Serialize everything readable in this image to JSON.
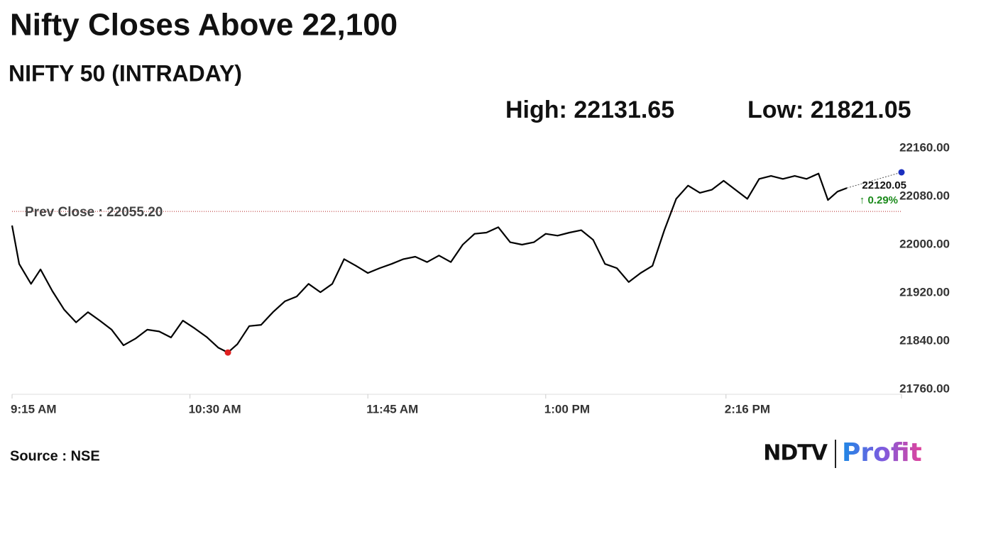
{
  "chart_data": {
    "type": "line",
    "title": "Nifty Closes Above 22,100",
    "subtitle": "NIFTY 50 (INTRADAY)",
    "high_label": "High:",
    "high": 22131.65,
    "low_label": "Low:",
    "low": 21821.05,
    "prev_close": {
      "value": 22055.2,
      "label": "Prev Close : 22055.20"
    },
    "last_value": 22120.05,
    "change_label": "↑ 0.29%",
    "source": "Source : NSE",
    "logo": {
      "left": "NDTV",
      "right": "Profit"
    },
    "color": "#000000",
    "low_color": "#e02020",
    "close_color": "#1a2fbf",
    "prev_close_color": "#b22222",
    "x": [
      "09:15",
      "09:18",
      "09:23",
      "09:27",
      "09:32",
      "09:37",
      "09:42",
      "09:47",
      "09:52",
      "09:57",
      "10:02",
      "10:07",
      "10:12",
      "10:17",
      "10:22",
      "10:27",
      "10:32",
      "10:37",
      "10:42",
      "10:46",
      "10:50",
      "10:55",
      "11:00",
      "11:05",
      "11:10",
      "11:15",
      "11:20",
      "11:25",
      "11:30",
      "11:35",
      "11:40",
      "11:45",
      "11:50",
      "11:55",
      "12:00",
      "12:05",
      "12:10",
      "12:15",
      "12:20",
      "12:25",
      "12:30",
      "12:35",
      "12:40",
      "12:45",
      "12:50",
      "12:55",
      "13:00",
      "13:05",
      "13:10",
      "13:15",
      "13:20",
      "13:25",
      "13:30",
      "13:35",
      "13:40",
      "13:45",
      "13:50",
      "13:55",
      "14:00",
      "14:05",
      "14:10",
      "14:15",
      "14:20",
      "14:25",
      "14:30",
      "14:35",
      "14:40",
      "14:45",
      "14:50",
      "14:55",
      "14:59",
      "15:03",
      "15:07"
    ],
    "values": [
      22031.8,
      21968,
      21935,
      21959,
      21923,
      21892,
      21871,
      21888,
      21874,
      21859,
      21833,
      21844,
      21859,
      21856,
      21846,
      21874,
      21861,
      21847,
      21829,
      21821.05,
      21835,
      21865,
      21867,
      21888,
      21906,
      21914,
      21935,
      21921,
      21935,
      21976,
      21965,
      21953,
      21961,
      21968,
      21976,
      21980,
      21971,
      21982,
      21971,
      22000,
      22018,
      22020,
      22029,
      22004,
      22000,
      22004,
      22018,
      22015,
      22020,
      22024,
      22008,
      21968,
      21961,
      21938,
      21953,
      21965,
      22024,
      22076,
      22098,
      22086,
      22091,
      22106,
      22091,
      22076,
      22109,
      22114,
      22109,
      22114,
      22109,
      22118,
      22074,
      22088,
      22094
    ],
    "xlim": [
      "09:15",
      "15:30"
    ],
    "xticks": [
      {
        "value": "09:15",
        "label": "9:15 AM"
      },
      {
        "value": "10:30",
        "label": "10:30 AM"
      },
      {
        "value": "11:45",
        "label": "11:45 AM"
      },
      {
        "value": "13:00",
        "label": "1:00 PM"
      },
      {
        "value": "14:16",
        "label": "2:16 PM"
      }
    ],
    "ylim": [
      21760,
      22160
    ],
    "yticks": [
      {
        "value": 21760,
        "label": "21760.00"
      },
      {
        "value": 21840,
        "label": "21840.00"
      },
      {
        "value": 21920,
        "label": "21920.00"
      },
      {
        "value": 22000,
        "label": "22000.00"
      },
      {
        "value": 22080,
        "label": "22080.00"
      },
      {
        "value": 22160,
        "label": "22160.00"
      }
    ],
    "grid": false
  }
}
